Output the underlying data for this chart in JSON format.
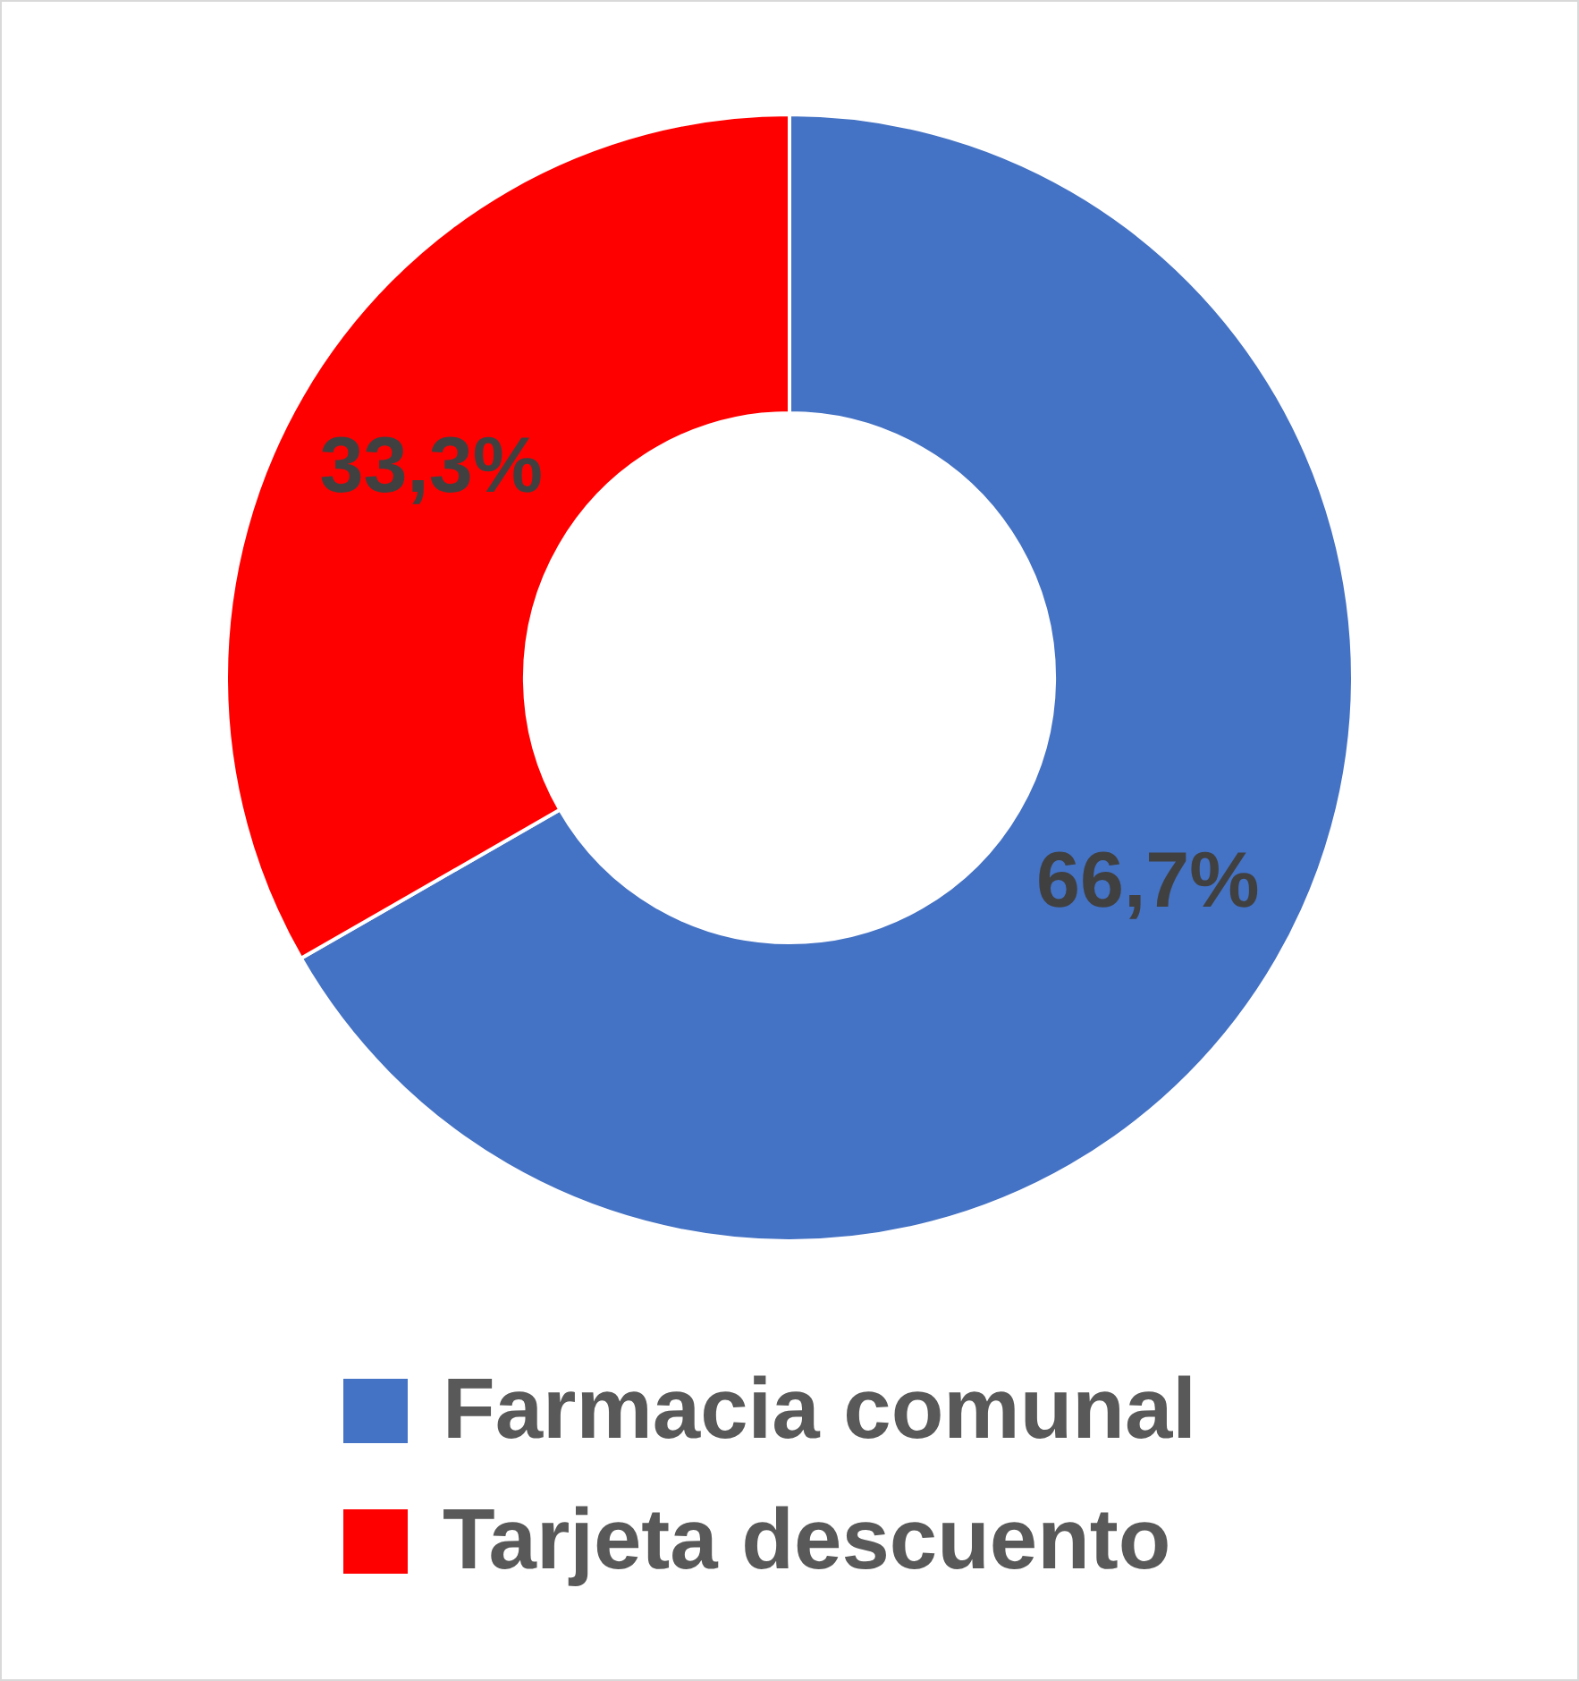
{
  "chart_data": {
    "type": "donut",
    "categories": [
      "Farmacia comunal",
      "Tarjeta descuento"
    ],
    "values": [
      66.7,
      33.3
    ],
    "colors": [
      "#4472c4",
      "#ff0000"
    ],
    "value_labels": [
      "66,7%",
      "33,3%"
    ],
    "legend": "bottom"
  }
}
